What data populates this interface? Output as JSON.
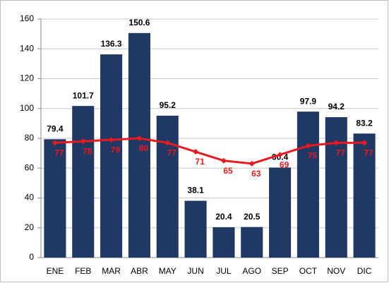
{
  "chart_data": {
    "type": "bar",
    "categories": [
      "ENE",
      "FEB",
      "MAR",
      "ABR",
      "MAY",
      "JUN",
      "JUL",
      "AGO",
      "SEP",
      "OCT",
      "NOV",
      "DIC"
    ],
    "series": [
      {
        "type": "bar",
        "color": "#1f3864",
        "values": [
          79.4,
          101.7,
          136.3,
          150.6,
          95.2,
          38.1,
          20.4,
          20.5,
          60.4,
          97.9,
          94.2,
          83.2
        ]
      },
      {
        "type": "line",
        "color": "#e8191f",
        "values": [
          77,
          78,
          79,
          80,
          77,
          71,
          65,
          63,
          69,
          75,
          77,
          77
        ]
      }
    ],
    "ylim": [
      0,
      160
    ],
    "yticks": [
      0,
      20,
      40,
      60,
      80,
      100,
      120,
      140,
      160
    ],
    "grid": true
  }
}
